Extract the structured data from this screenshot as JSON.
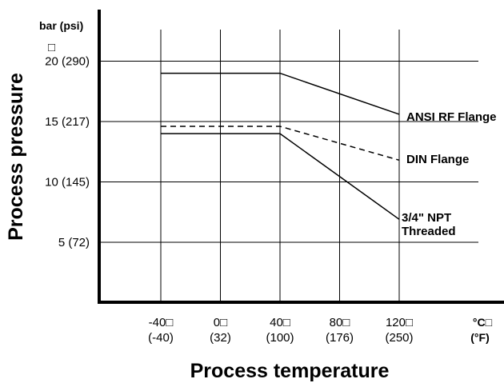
{
  "chart_data": {
    "type": "line",
    "xlabel": "Process temperature",
    "ylabel": "Process pressure",
    "y_unit_label": "bar  (psi)",
    "x_unit_label_c": "°C□",
    "x_unit_label_f": "(°F)",
    "y_marker": "□",
    "xlim": [
      -80,
      160
    ],
    "ylim": [
      0,
      23
    ],
    "grid": true,
    "x_ticks": [
      {
        "value": -40,
        "label_c": "-40□",
        "label_f": "(-40)"
      },
      {
        "value": 0,
        "label_c": "0□",
        "label_f": "(32)"
      },
      {
        "value": 40,
        "label_c": "40□",
        "label_f": "(100)"
      },
      {
        "value": 80,
        "label_c": "80□",
        "label_f": "(176)"
      },
      {
        "value": 120,
        "label_c": "120□",
        "label_f": "(250)"
      }
    ],
    "y_ticks": [
      {
        "value": 5,
        "label": "5 (72)"
      },
      {
        "value": 10,
        "label": "10 (145)"
      },
      {
        "value": 15,
        "label": "15 (217)"
      },
      {
        "value": 20,
        "label": "20 (290)"
      }
    ],
    "series": [
      {
        "name": "ANSI RF Flange",
        "x": [
          -40,
          40,
          120
        ],
        "y": [
          19,
          19,
          15.6
        ],
        "style": "solid",
        "label_lines": [
          "ANSI RF Flange"
        ]
      },
      {
        "name": "DIN Flange",
        "x": [
          -40,
          40,
          120
        ],
        "y": [
          14.6,
          14.6,
          11.8
        ],
        "style": "dashed",
        "label_lines": [
          "DIN Flange"
        ]
      },
      {
        "name": "3/4\" NPT Threaded",
        "x": [
          -40,
          40,
          120
        ],
        "y": [
          14,
          14,
          6.9
        ],
        "style": "solid",
        "label_lines": [
          "3/4\" NPT",
          "Threaded"
        ]
      }
    ],
    "colors": {
      "line": "#000000",
      "grid": "#000000"
    }
  }
}
